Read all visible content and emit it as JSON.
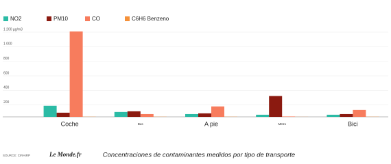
{
  "chart_data": {
    "type": "bar",
    "categories": [
      "Coche",
      "Bus",
      "A pie",
      "Metro",
      "Bici"
    ],
    "series": [
      {
        "name": "NO2",
        "color": "#2bbba5",
        "values": [
          152,
          67,
          38,
          29,
          29
        ]
      },
      {
        "name": "PM10",
        "color": "#8b1a10",
        "values": [
          57,
          76,
          48,
          286,
          38
        ]
      },
      {
        "name": "CO",
        "color": "#f77c5d",
        "values": [
          1171,
          38,
          143,
          5,
          95
        ]
      },
      {
        "name": "C6H6 Benzeno",
        "color": "#f5913a",
        "values": [
          2,
          2,
          2,
          1,
          2
        ]
      }
    ],
    "ylim": [
      0,
      1200
    ],
    "yticks": [
      200,
      400,
      600,
      800,
      {
        "value": 1000,
        "label": "1 000"
      },
      {
        "value": 1200,
        "label": "1 200 µg/m3"
      }
    ],
    "grid": true,
    "caption": "Concentraciones de contaminantes medidos por tipo de transporte",
    "source": "SOURCE: CIRAIRP",
    "brand": "Le Monde.fr"
  }
}
